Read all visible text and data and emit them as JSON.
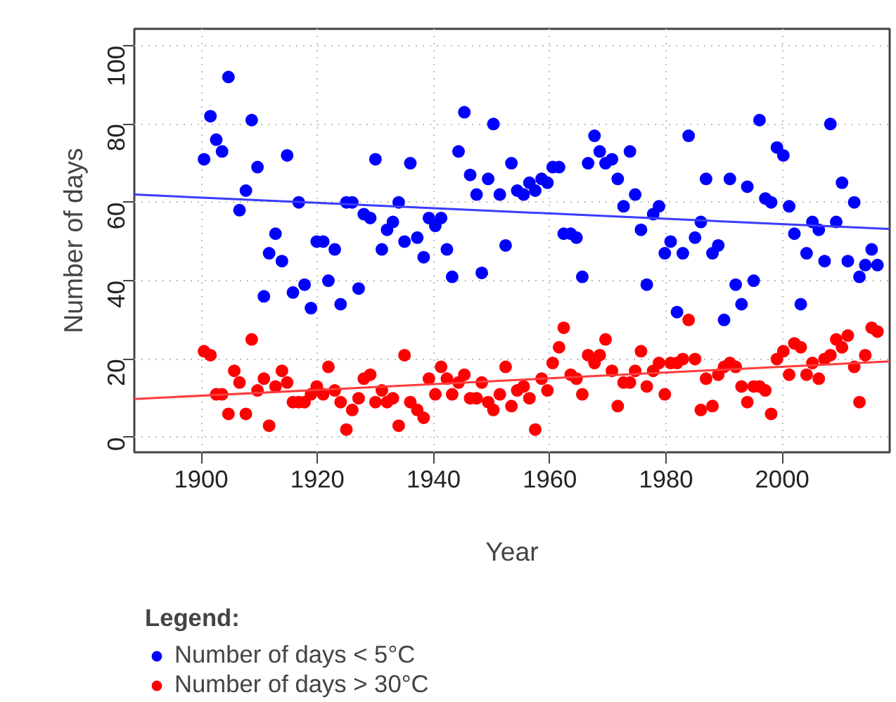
{
  "chart_data": {
    "type": "scatter",
    "xlabel": "Year",
    "ylabel": "Number of days",
    "legend_title": "Legend:",
    "legend": "bottom",
    "grid": true,
    "marker": "circle",
    "xlim": [
      1888.5,
      2018.5
    ],
    "xticks": [
      1900,
      1920,
      1940,
      1960,
      1980,
      2000
    ],
    "ylim": [
      -3.8,
      104.3
    ],
    "yticks": [
      0,
      20,
      40,
      60,
      80,
      100
    ],
    "series": [
      {
        "name": "Number of days < 5°C",
        "color": "#0000ff",
        "x": [
          1900.5,
          1901.6,
          1902.6,
          1903.6,
          1904.7,
          1906.6,
          1907.7,
          1908.7,
          1909.7,
          1910.8,
          1911.7,
          1912.8,
          1913.9,
          1914.8,
          1915.8,
          1916.8,
          1917.8,
          1918.9,
          1919.9,
          1921.0,
          1921.9,
          1923.0,
          1924.0,
          1925.0,
          1926.0,
          1927.1,
          1928.0,
          1929.1,
          1930.0,
          1931.1,
          1932.0,
          1933.0,
          1934.0,
          1935.0,
          1936.0,
          1937.2,
          1938.3,
          1939.2,
          1940.3,
          1941.3,
          1942.3,
          1943.2,
          1944.3,
          1945.3,
          1946.3,
          1947.4,
          1948.3,
          1949.4,
          1950.3,
          1951.4,
          1952.4,
          1953.4,
          1954.4,
          1955.5,
          1956.5,
          1957.5,
          1958.6,
          1959.6,
          1960.5,
          1961.6,
          1962.4,
          1963.6,
          1964.6,
          1965.6,
          1966.6,
          1967.7,
          1968.6,
          1969.6,
          1970.7,
          1971.7,
          1972.7,
          1973.8,
          1974.7,
          1975.7,
          1976.7,
          1977.8,
          1978.8,
          1979.8,
          1980.8,
          1981.9,
          1982.9,
          1983.9,
          1985.0,
          1986.0,
          1986.9,
          1988.0,
          1989.0,
          1990.0,
          1991.0,
          1992.0,
          1993.0,
          1994.0,
          1995.1,
          1996.1,
          1997.1,
          1998.1,
          1999.1,
          2000.2,
          2001.2,
          2002.1,
          2003.2,
          2004.2,
          2005.2,
          2006.3,
          2007.3,
          2008.3,
          2009.3,
          2010.3,
          2011.3,
          2012.4,
          2013.3,
          2014.3,
          2015.4,
          2016.4
        ],
        "values": [
          71,
          82,
          76,
          73,
          92,
          58,
          63,
          81,
          69,
          36,
          47,
          52,
          45,
          72,
          37,
          60,
          39,
          33,
          50,
          50,
          40,
          48,
          34,
          60,
          60,
          38,
          57,
          56,
          71,
          48,
          53,
          55,
          60,
          50,
          70,
          51,
          46,
          56,
          54,
          56,
          48,
          41,
          73,
          83,
          67,
          62,
          42,
          66,
          80,
          62,
          49,
          70,
          63,
          62,
          65,
          63,
          66,
          65,
          69,
          69,
          52,
          52,
          51,
          41,
          70,
          77,
          73,
          70,
          71,
          66,
          59,
          73,
          62,
          53,
          39,
          57,
          59,
          47,
          50,
          32,
          47,
          77,
          51,
          55,
          66,
          47,
          49,
          30,
          66,
          39,
          34,
          64,
          40,
          81,
          61,
          60,
          74,
          72,
          59,
          52,
          34,
          47,
          55,
          53,
          45,
          80,
          55,
          65,
          45,
          60,
          41,
          44,
          48,
          44
        ]
      },
      {
        "name": "Number of days > 30°C",
        "color": "#ff0000",
        "x": [
          1900.5,
          1901.6,
          1902.6,
          1903.6,
          1904.7,
          1905.7,
          1906.6,
          1907.7,
          1908.7,
          1909.7,
          1910.8,
          1911.7,
          1912.8,
          1913.9,
          1914.8,
          1915.8,
          1916.8,
          1917.8,
          1918.9,
          1919.9,
          1921.0,
          1921.9,
          1923.0,
          1924.0,
          1925.0,
          1926.0,
          1927.1,
          1928.0,
          1929.1,
          1930.0,
          1931.1,
          1932.0,
          1933.0,
          1934.0,
          1935.0,
          1936.0,
          1937.2,
          1938.3,
          1939.2,
          1940.3,
          1941.3,
          1942.3,
          1943.2,
          1944.3,
          1945.3,
          1946.3,
          1947.4,
          1948.3,
          1949.4,
          1950.3,
          1951.4,
          1952.4,
          1953.4,
          1954.4,
          1955.5,
          1956.5,
          1957.5,
          1958.6,
          1959.6,
          1960.5,
          1961.6,
          1962.4,
          1963.6,
          1964.6,
          1965.6,
          1966.6,
          1967.7,
          1968.6,
          1969.6,
          1970.7,
          1971.7,
          1972.7,
          1973.8,
          1974.7,
          1975.7,
          1976.7,
          1977.8,
          1978.8,
          1979.8,
          1980.8,
          1981.9,
          1982.9,
          1983.9,
          1985.0,
          1986.0,
          1986.9,
          1988.0,
          1989.0,
          1990.0,
          1991.0,
          1992.0,
          1993.0,
          1994.0,
          1995.1,
          1996.1,
          1997.1,
          1998.1,
          1999.1,
          2000.2,
          2001.2,
          2002.1,
          2003.2,
          2004.2,
          2005.2,
          2006.3,
          2007.3,
          2008.3,
          2009.3,
          2010.3,
          2011.3,
          2012.4,
          2013.3,
          2014.3,
          2015.4,
          2016.4
        ],
        "values": [
          22,
          21,
          11,
          11,
          6,
          17,
          14,
          6,
          25,
          12,
          15,
          3,
          13,
          17,
          14,
          9,
          9,
          9,
          11,
          13,
          11,
          18,
          12,
          9,
          2,
          7,
          10,
          15,
          16,
          9,
          12,
          9,
          10,
          3,
          21,
          9,
          7,
          5,
          15,
          11,
          18,
          15,
          11,
          14,
          16,
          10,
          10,
          14,
          9,
          7,
          11,
          18,
          8,
          12,
          13,
          10,
          2,
          15,
          12,
          19,
          23,
          28,
          16,
          15,
          11,
          21,
          19,
          21,
          25,
          17,
          8,
          14,
          14,
          17,
          22,
          13,
          17,
          19,
          11,
          19,
          19,
          20,
          30,
          20,
          7,
          15,
          8,
          16,
          18,
          19,
          18,
          13,
          9,
          13,
          13,
          12,
          6,
          20,
          22,
          16,
          24,
          23,
          16,
          19,
          15,
          20,
          21,
          25,
          23,
          26,
          18,
          9,
          21,
          28,
          27
        ]
      },
      {
        "type": "line",
        "marker": "none",
        "color": "#3b3bff",
        "x": [
          1888.5,
          2018.5
        ],
        "values": [
          62.0,
          53.2
        ]
      },
      {
        "type": "line",
        "marker": "none",
        "color": "#ff3b3b",
        "x": [
          1888.5,
          2018.5
        ],
        "values": [
          9.8,
          19.4
        ]
      }
    ]
  }
}
